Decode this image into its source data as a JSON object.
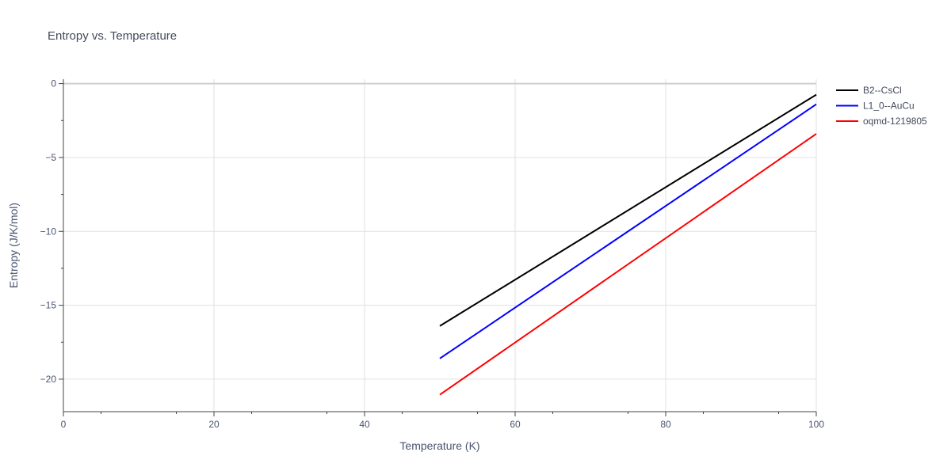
{
  "chart_data": {
    "type": "line",
    "title": "Entropy vs. Temperature",
    "xlabel": "Temperature (K)",
    "ylabel": "Entropy (J/K/mol)",
    "xlim": [
      0,
      100
    ],
    "ylim": [
      -22.2,
      0.3
    ],
    "x_ticks": [
      0,
      20,
      40,
      60,
      80,
      100
    ],
    "y_ticks": [
      0,
      -5,
      -10,
      -15,
      -20
    ],
    "x_tick_labels": [
      "0",
      "20",
      "40",
      "60",
      "80",
      "100"
    ],
    "y_tick_labels": [
      "0",
      "−5",
      "−10",
      "−15",
      "−20"
    ],
    "grid": true,
    "legend_position": "top-right",
    "series": [
      {
        "name": "B2--CsCl",
        "color": "#000000",
        "x": [
          50,
          100
        ],
        "y": [
          -16.4,
          -0.75
        ]
      },
      {
        "name": "L1_0--AuCu",
        "color": "#0000ff",
        "x": [
          50,
          100
        ],
        "y": [
          -18.6,
          -1.4
        ]
      },
      {
        "name": "oqmd-1219805",
        "color": "#ff0000",
        "x": [
          50,
          100
        ],
        "y": [
          -21.05,
          -3.4
        ]
      }
    ]
  }
}
